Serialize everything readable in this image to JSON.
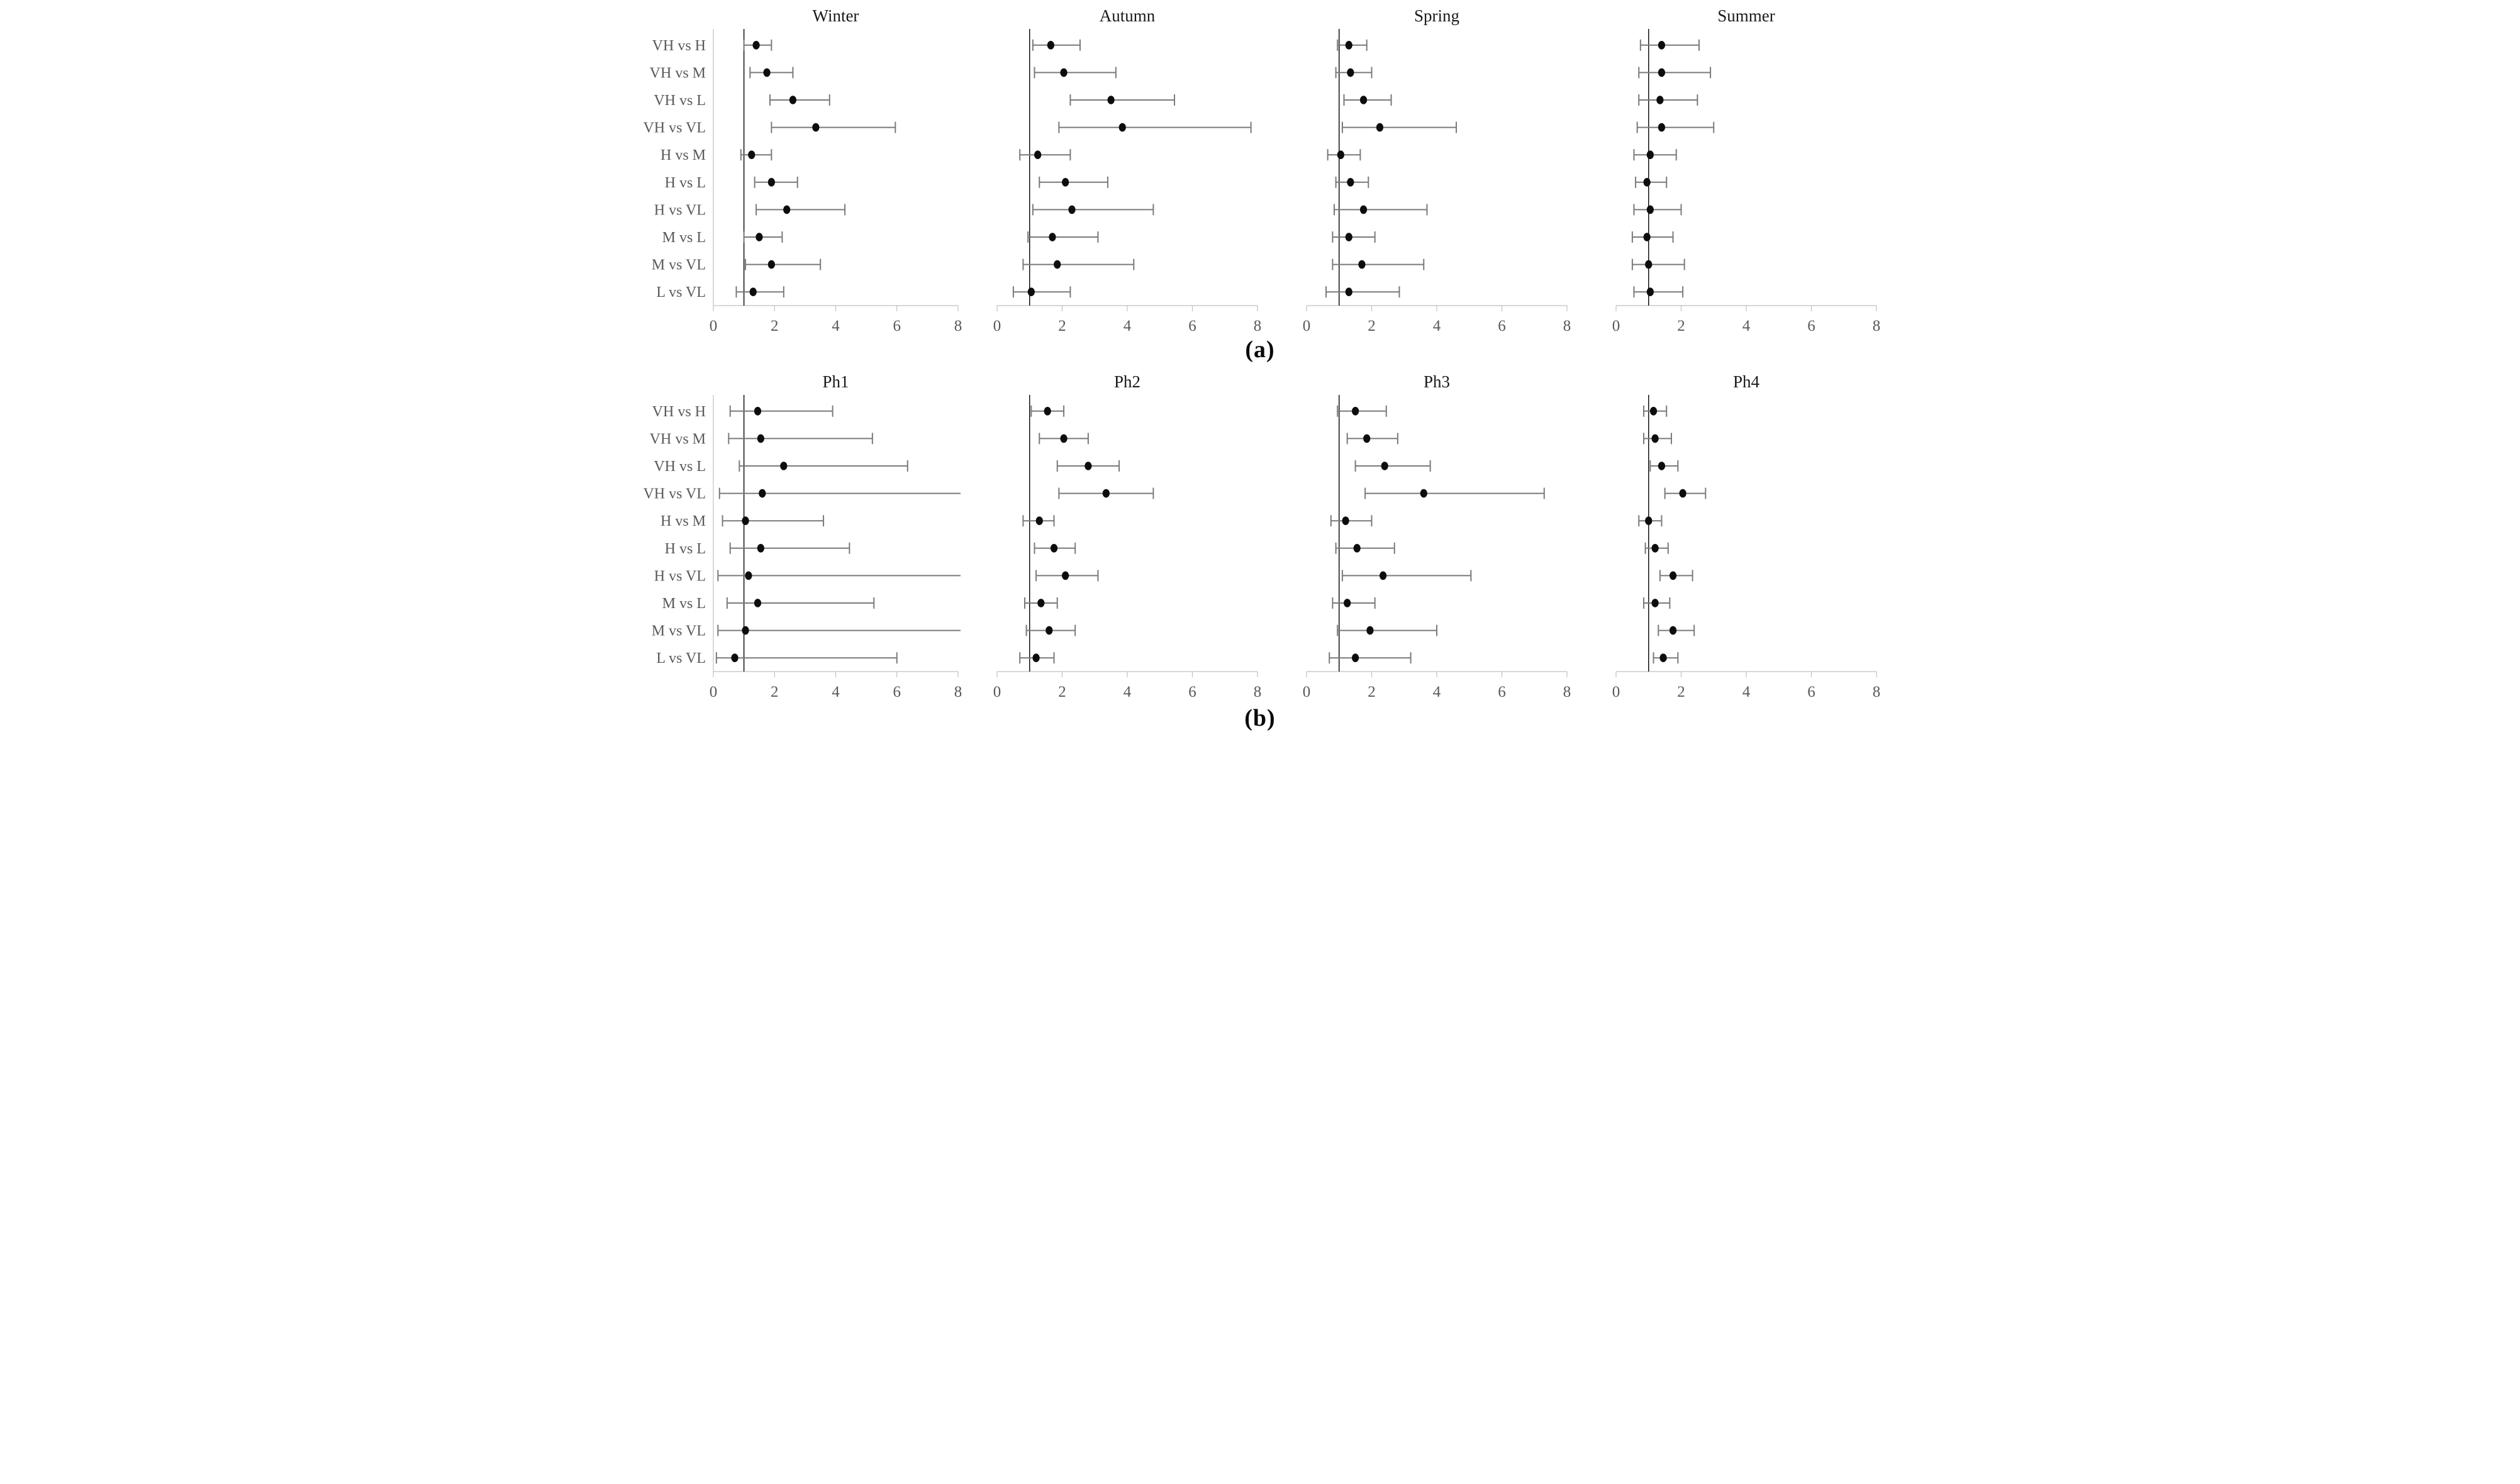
{
  "chart_data": {
    "type": "scatter",
    "subtype": "forest-dot-whisker",
    "categories": [
      "VH vs H",
      "VH vs M",
      "VH vs L",
      "VH vs VL",
      "H vs M",
      "H vs L",
      "H vs VL",
      "M vs L",
      "M vs VL",
      "L vs VL"
    ],
    "xlim": [
      0,
      8
    ],
    "xticks": [
      0,
      2,
      4,
      6,
      8
    ],
    "reference_line_x": 1,
    "legend": "none",
    "grid": false,
    "colors": {
      "marker": "#0d0d0d",
      "whisker": "#7a7a7a",
      "axis": "#c0c0c0",
      "tick_label": "#595959",
      "category_label": "#595959",
      "title": "#1a1a1a",
      "reference_line": "#111111"
    },
    "panel_groups": [
      {
        "caption": "(a)",
        "panels": [
          {
            "title": "Winter",
            "estimates": [
              [
                1.4,
                1.0,
                1.9
              ],
              [
                1.75,
                1.2,
                2.6
              ],
              [
                2.6,
                1.85,
                3.8
              ],
              [
                3.35,
                1.9,
                5.95
              ],
              [
                1.25,
                0.9,
                1.9
              ],
              [
                1.9,
                1.35,
                2.75
              ],
              [
                2.4,
                1.4,
                4.3
              ],
              [
                1.5,
                1.0,
                2.25
              ],
              [
                1.9,
                1.05,
                3.5
              ],
              [
                1.3,
                0.75,
                2.3
              ]
            ]
          },
          {
            "title": "Autumn",
            "estimates": [
              [
                1.65,
                1.1,
                2.55
              ],
              [
                2.05,
                1.15,
                3.65
              ],
              [
                3.5,
                2.25,
                5.45
              ],
              [
                3.85,
                1.9,
                7.8
              ],
              [
                1.25,
                0.7,
                2.25
              ],
              [
                2.1,
                1.3,
                3.4
              ],
              [
                2.3,
                1.1,
                4.8
              ],
              [
                1.7,
                0.95,
                3.1
              ],
              [
                1.85,
                0.8,
                4.2
              ],
              [
                1.05,
                0.5,
                2.25
              ]
            ]
          },
          {
            "title": "Spring",
            "estimates": [
              [
                1.3,
                0.95,
                1.85
              ],
              [
                1.35,
                0.9,
                2.0
              ],
              [
                1.75,
                1.15,
                2.6
              ],
              [
                2.25,
                1.1,
                4.6
              ],
              [
                1.05,
                0.65,
                1.65
              ],
              [
                1.35,
                0.9,
                1.9
              ],
              [
                1.75,
                0.85,
                3.7
              ],
              [
                1.3,
                0.8,
                2.1
              ],
              [
                1.7,
                0.8,
                3.6
              ],
              [
                1.3,
                0.6,
                2.85
              ]
            ]
          },
          {
            "title": "Summer",
            "estimates": [
              [
                1.4,
                0.75,
                2.55
              ],
              [
                1.4,
                0.7,
                2.9
              ],
              [
                1.35,
                0.7,
                2.5
              ],
              [
                1.4,
                0.65,
                3.0
              ],
              [
                1.05,
                0.55,
                1.85
              ],
              [
                0.95,
                0.6,
                1.55
              ],
              [
                1.05,
                0.55,
                2.0
              ],
              [
                0.95,
                0.5,
                1.75
              ],
              [
                1.0,
                0.5,
                2.1
              ],
              [
                1.05,
                0.55,
                2.05
              ]
            ]
          }
        ]
      },
      {
        "caption": "(b)",
        "panels": [
          {
            "title": "Ph1",
            "estimates": [
              [
                1.45,
                0.55,
                3.9
              ],
              [
                1.55,
                0.5,
                5.2
              ],
              [
                2.3,
                0.85,
                6.35
              ],
              [
                1.6,
                0.2,
                8.0
              ],
              [
                1.05,
                0.3,
                3.6
              ],
              [
                1.55,
                0.55,
                4.45
              ],
              [
                1.15,
                0.15,
                8.0
              ],
              [
                1.45,
                0.45,
                5.25
              ],
              [
                1.05,
                0.15,
                8.0
              ],
              [
                0.7,
                0.1,
                6.0
              ]
            ],
            "right_clipped_rows": [
              3,
              6,
              8
            ]
          },
          {
            "title": "Ph2",
            "estimates": [
              [
                1.55,
                1.05,
                2.05
              ],
              [
                2.05,
                1.3,
                2.8
              ],
              [
                2.8,
                1.85,
                3.75
              ],
              [
                3.35,
                1.9,
                4.8
              ],
              [
                1.3,
                0.8,
                1.75
              ],
              [
                1.75,
                1.15,
                2.4
              ],
              [
                2.1,
                1.2,
                3.1
              ],
              [
                1.35,
                0.85,
                1.85
              ],
              [
                1.6,
                0.9,
                2.4
              ],
              [
                1.2,
                0.7,
                1.75
              ]
            ]
          },
          {
            "title": "Ph3",
            "estimates": [
              [
                1.5,
                0.95,
                2.45
              ],
              [
                1.85,
                1.25,
                2.8
              ],
              [
                2.4,
                1.5,
                3.8
              ],
              [
                3.6,
                1.8,
                7.3
              ],
              [
                1.2,
                0.75,
                2.0
              ],
              [
                1.55,
                0.9,
                2.7
              ],
              [
                2.35,
                1.1,
                5.05
              ],
              [
                1.25,
                0.8,
                2.1
              ],
              [
                1.95,
                0.95,
                4.0
              ],
              [
                1.5,
                0.7,
                3.2
              ]
            ]
          },
          {
            "title": "Ph4",
            "estimates": [
              [
                1.15,
                0.85,
                1.55
              ],
              [
                1.2,
                0.85,
                1.7
              ],
              [
                1.4,
                1.05,
                1.9
              ],
              [
                2.05,
                1.5,
                2.75
              ],
              [
                1.0,
                0.7,
                1.4
              ],
              [
                1.2,
                0.9,
                1.6
              ],
              [
                1.75,
                1.35,
                2.35
              ],
              [
                1.2,
                0.85,
                1.65
              ],
              [
                1.75,
                1.3,
                2.4
              ],
              [
                1.45,
                1.15,
                1.9
              ]
            ]
          }
        ]
      }
    ]
  }
}
